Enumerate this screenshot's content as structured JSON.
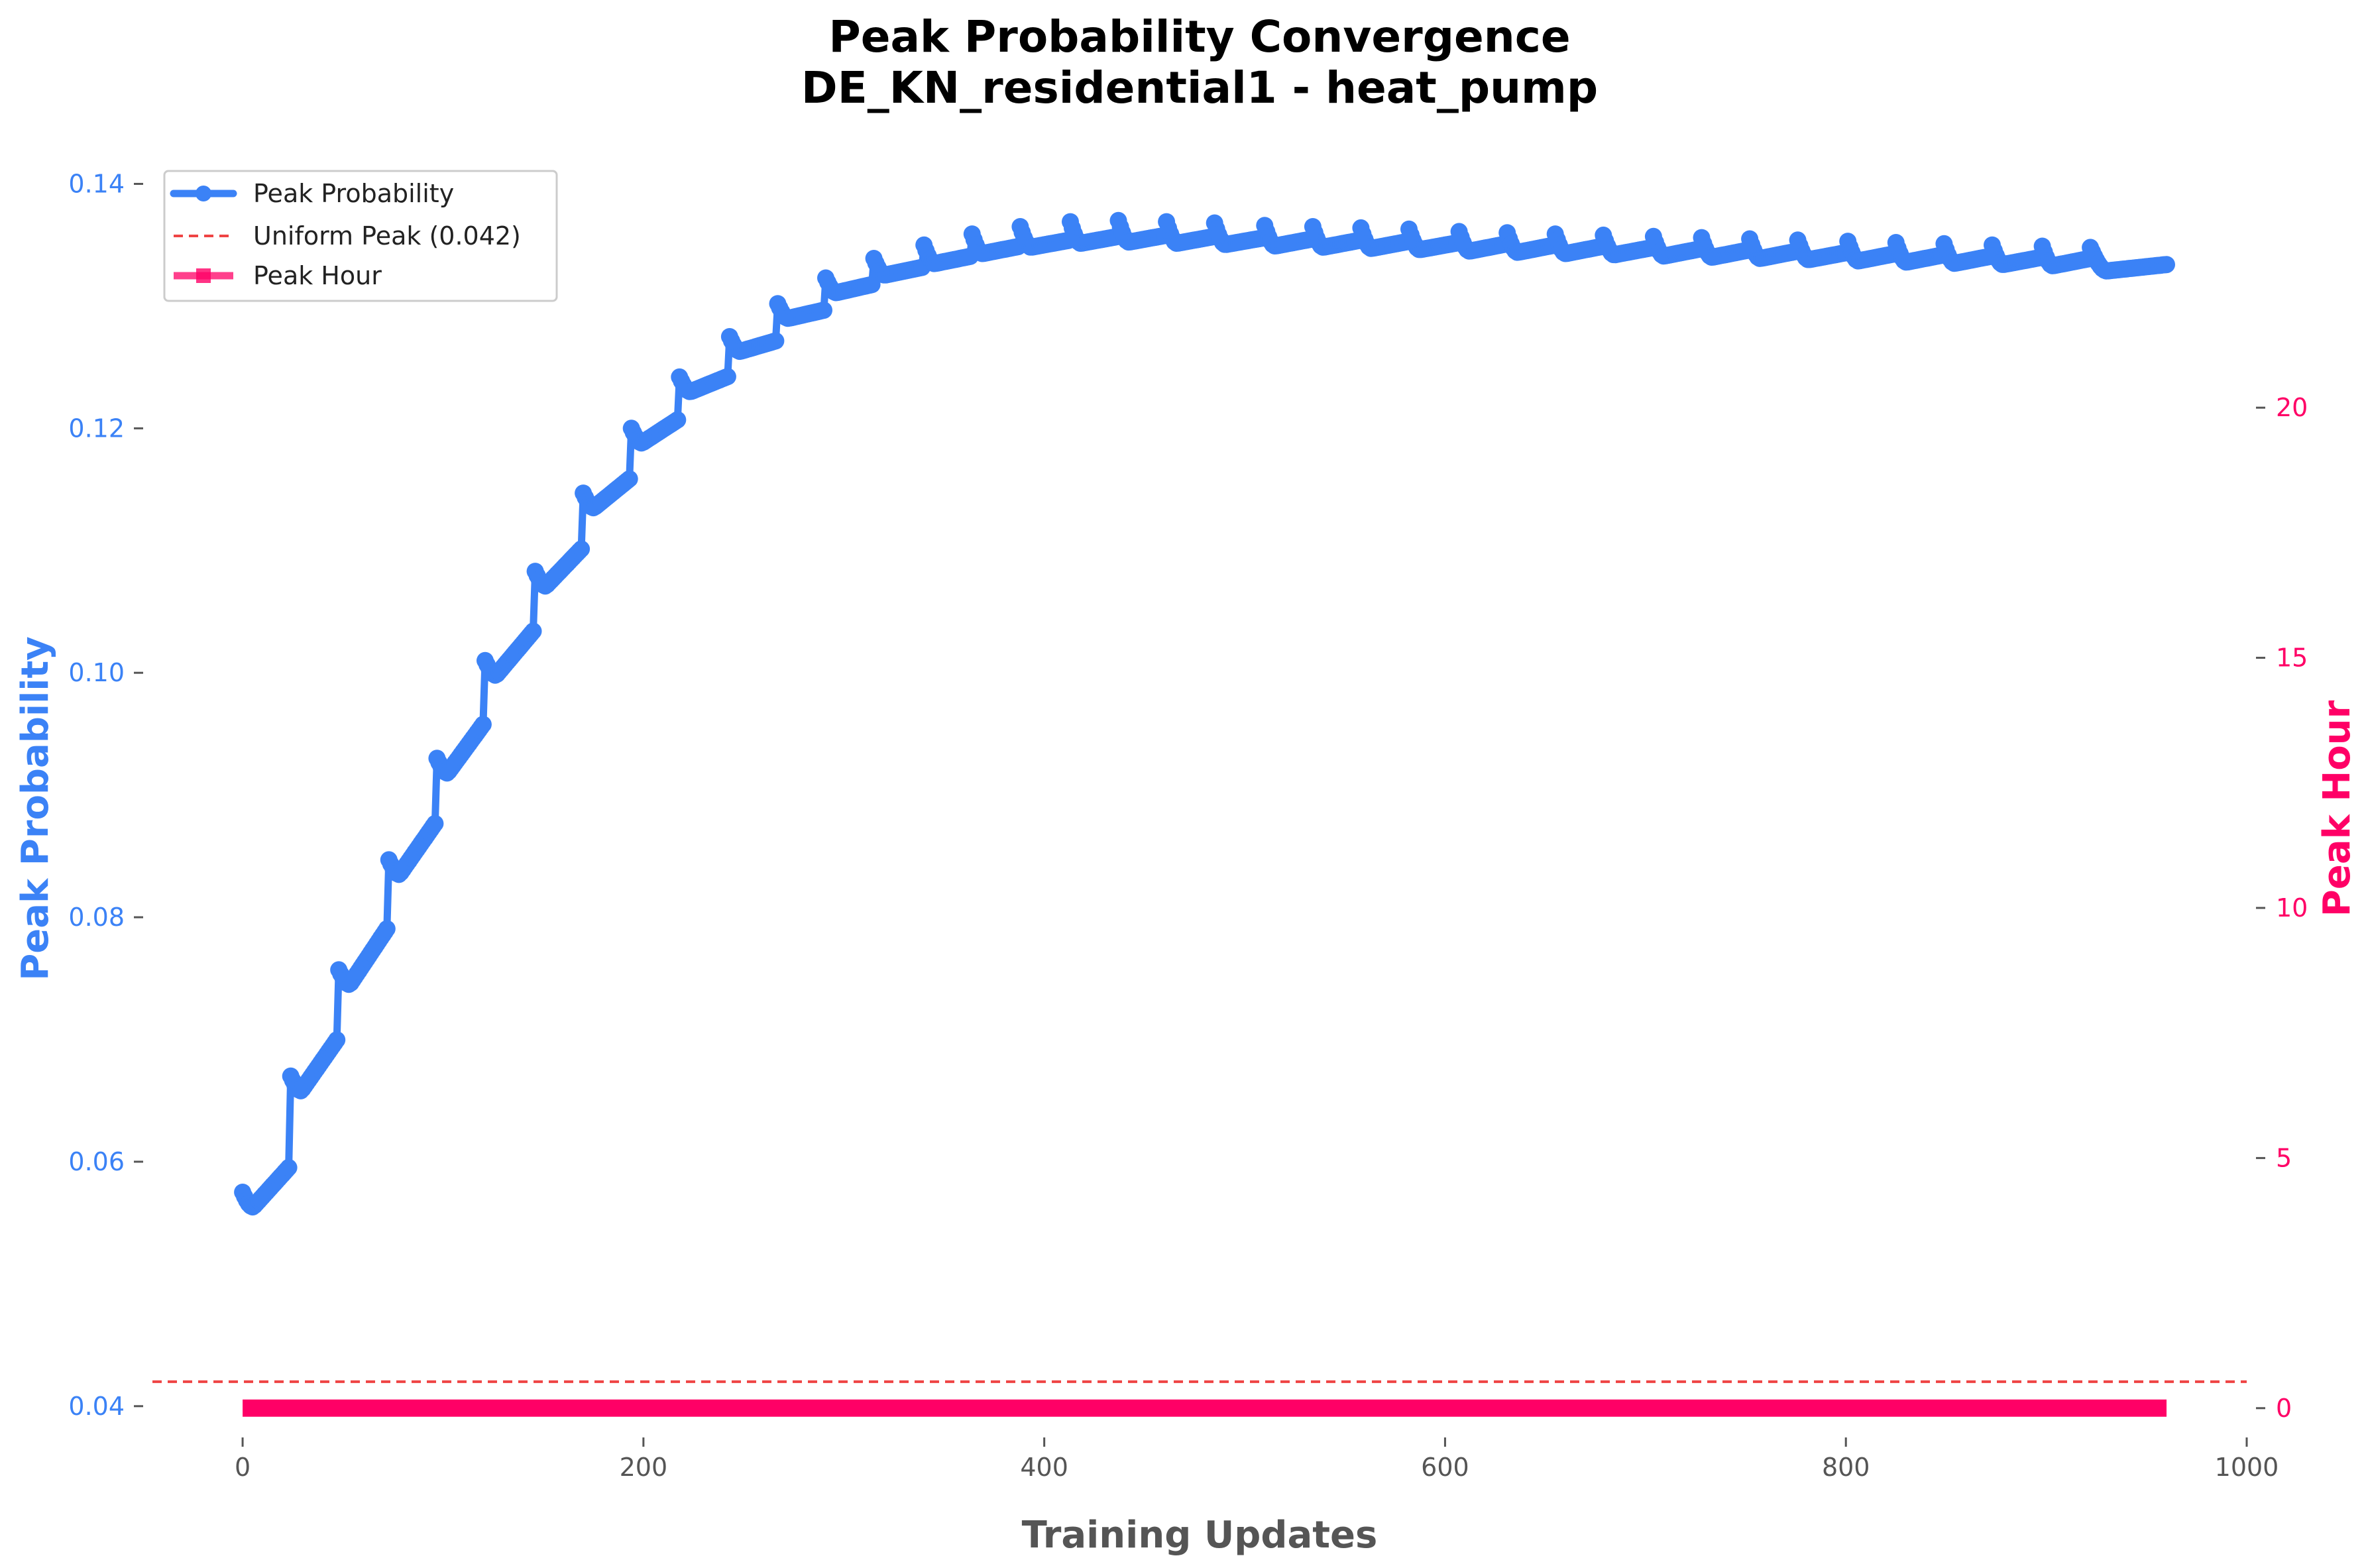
{
  "chart_data": {
    "type": "line",
    "title": "Peak Probability Convergence",
    "subtitle": "DE_KN_residential1 - heat_pump",
    "xlabel": "Training Updates",
    "ylabel": "Peak Probability",
    "y2label": "Peak Hour",
    "xlim": [
      -45,
      1000
    ],
    "ylim": [
      0.0382,
      0.1442
    ],
    "y2lim": [
      -0.4,
      25.5
    ],
    "xticks": [
      "0",
      "200",
      "400",
      "600",
      "800",
      "1000"
    ],
    "yticks": [
      "0.04",
      "0.06",
      "0.08",
      "0.10",
      "0.12",
      "0.14"
    ],
    "y2ticks": [
      "0",
      "5",
      "10",
      "15",
      "20"
    ],
    "grid": false,
    "legend_position": "upper-left",
    "legend": {
      "series1": "Peak Probability",
      "series2": "Uniform Peak (0.042)",
      "series3": "Peak Hour"
    },
    "colors": {
      "peak_probability": "#3b82f6",
      "uniform_peak": "#ef4444",
      "peak_hour": "#ff0066",
      "left_axis": "#3b82f6",
      "right_axis": "#ff0066"
    },
    "series": [
      {
        "name": "Peak Probability",
        "axis": "left",
        "description": "piecewise: each block of ~24 updates starts with a jump then a small dip and gradual rise; block start values",
        "block_length": 24.3,
        "block_starts": [
          0,
          24,
          48,
          73,
          97,
          121,
          146,
          170,
          194,
          218,
          243,
          267,
          291,
          315,
          340,
          364,
          388,
          413,
          437,
          461,
          485,
          510,
          534,
          558,
          582,
          607,
          631,
          655,
          679,
          704,
          728,
          752,
          776,
          801,
          825,
          849,
          873,
          898,
          922
        ],
        "block_peak_values": [
          0.0575,
          0.067,
          0.0757,
          0.0847,
          0.093,
          0.101,
          0.1083,
          0.1147,
          0.12,
          0.1242,
          0.1275,
          0.1302,
          0.1323,
          0.1339,
          0.135,
          0.1359,
          0.1365,
          0.1369,
          0.137,
          0.1369,
          0.1368,
          0.1366,
          0.1365,
          0.1364,
          0.1363,
          0.1361,
          0.136,
          0.1359,
          0.1358,
          0.1357,
          0.1356,
          0.1355,
          0.1354,
          0.1353,
          0.1352,
          0.1351,
          0.135,
          0.1349,
          0.1348
        ],
        "block_end_values": [
          0.0597,
          0.0702,
          0.0793,
          0.0879,
          0.096,
          0.1036,
          0.1103,
          0.116,
          0.1208,
          0.1243,
          0.1272,
          0.1297,
          0.1318,
          0.1332,
          0.1341,
          0.1349,
          0.1354,
          0.1357,
          0.1358,
          0.1357,
          0.1356,
          0.1355,
          0.1354,
          0.1353,
          0.1352,
          0.1351,
          0.135,
          0.1349,
          0.1348,
          0.1347,
          0.1346,
          0.1345,
          0.1344,
          0.1343,
          0.1342,
          0.1341,
          0.134,
          0.1339,
          0.1334
        ],
        "x_end": 960
      },
      {
        "name": "Uniform Peak (0.042)",
        "axis": "left",
        "value": 0.042
      },
      {
        "name": "Peak Hour",
        "axis": "right",
        "x": [
          0,
          960
        ],
        "values": [
          0,
          0
        ]
      }
    ]
  }
}
